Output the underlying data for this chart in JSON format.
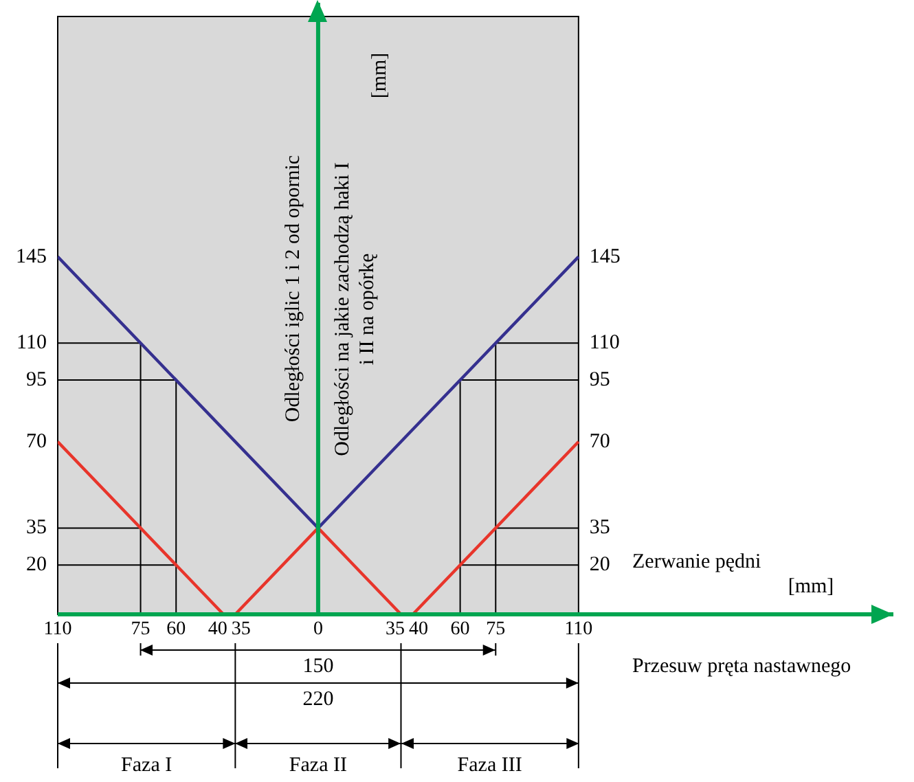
{
  "chart_data": {
    "type": "line",
    "ylabel": "Odległości iglic 1 i 2 od opornic",
    "y2label": "Odległości na jakie zachodzą haki I i II na opórkę",
    "xlabel": "Przesuw pręta nastawnego",
    "xlim": [
      -110,
      243
    ],
    "xticks": [
      {
        "value": -110,
        "label": "110"
      },
      {
        "value": -75,
        "label": "75"
      },
      {
        "value": -60,
        "label": "60"
      },
      {
        "value": -40,
        "label": "40"
      },
      {
        "value": -35,
        "label": "35"
      },
      0,
      35,
      40,
      60,
      75,
      110
    ],
    "ylim": [
      0,
      248
    ],
    "yticks": [
      20,
      35,
      70,
      95,
      110,
      145
    ],
    "y2lim": [
      0,
      248
    ],
    "y2ticks": [
      20,
      35,
      70,
      95,
      110,
      145
    ],
    "legend": false,
    "marker": "none",
    "line_style": "solid",
    "ref_lines": [
      {
        "axis": "x",
        "value": 0,
        "color": "#00a550"
      }
    ],
    "bands": [
      {
        "axis": "x",
        "from": -110,
        "to": 110,
        "color": "#d9d9d9"
      }
    ],
    "series": [
      {
        "color": "#35308f",
        "x": [
          -110,
          0,
          110
        ],
        "values": [
          145,
          35,
          145
        ]
      },
      {
        "color": "#e8352b",
        "x": [
          -110,
          -40,
          null,
          -35,
          0,
          35,
          null,
          40,
          110
        ],
        "values": [
          70,
          0,
          null,
          0,
          35,
          0,
          null,
          0,
          70
        ]
      },
      {
        "color": "#000000",
        "x": [
          -110,
          -75,
          -75,
          null,
          -110,
          -60,
          -60,
          null,
          -110,
          -75,
          null,
          -110,
          -60
        ],
        "values": [
          110,
          110,
          0,
          null,
          95,
          95,
          0,
          null,
          35,
          35,
          null,
          20,
          20
        ]
      },
      {
        "color": "#000000",
        "x": [
          110,
          75,
          75,
          null,
          110,
          60,
          60,
          null,
          110,
          75,
          null,
          110,
          60
        ],
        "values": [
          110,
          110,
          0,
          null,
          95,
          95,
          0,
          null,
          35,
          35,
          null,
          20,
          20
        ]
      }
    ],
    "annotations": [
      "[mm]",
      "Zerwanie pędni",
      "[mm]",
      "150",
      "220",
      "Faza I",
      "Faza II",
      "Faza III"
    ]
  }
}
